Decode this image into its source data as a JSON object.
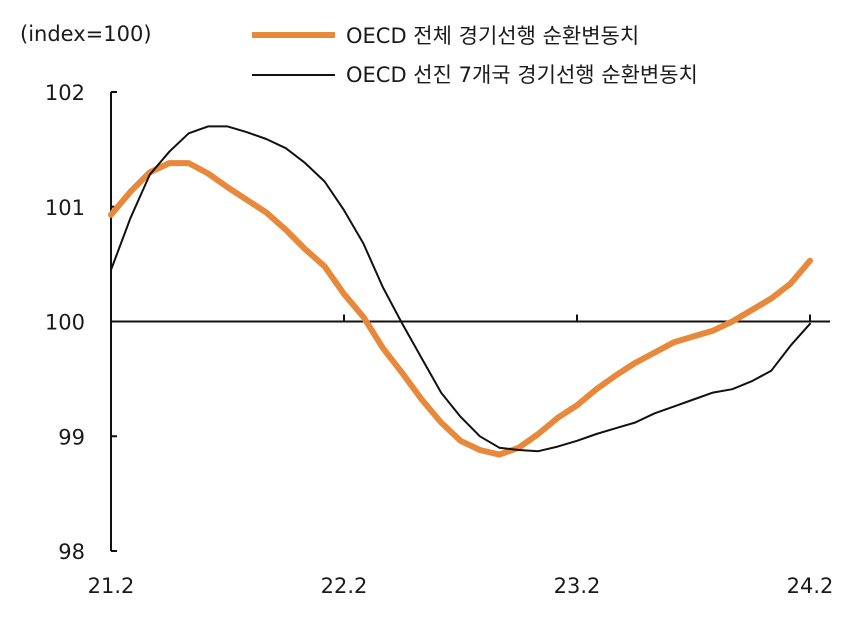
{
  "chart_data": {
    "type": "line",
    "ylabel": "(index=100)",
    "ylim": [
      98,
      102
    ],
    "y_ticks": [
      "102",
      "101",
      "100",
      "99",
      "98"
    ],
    "x_ticks": [
      "21.2",
      "22.2",
      "23.2",
      "24.2"
    ],
    "xlim": [
      "21.2",
      "24.2"
    ],
    "reference_line": 100,
    "grid": false,
    "legend_position": "top",
    "series": [
      {
        "name": "OECD 전체 경기선행 순환변동치",
        "color": "#E8883A",
        "x": [
          "21.2",
          "21.3",
          "21.4",
          "21.5",
          "21.6",
          "21.7",
          "21.8",
          "21.9",
          "21.10",
          "21.11",
          "21.12",
          "22.1",
          "22.2",
          "22.3",
          "22.4",
          "22.5",
          "22.6",
          "22.7",
          "22.8",
          "22.9",
          "22.10",
          "22.11",
          "22.12",
          "23.1",
          "23.2",
          "23.3",
          "23.4",
          "23.5",
          "23.6",
          "23.7",
          "23.8",
          "23.9",
          "23.10",
          "23.11",
          "23.12",
          "24.1",
          "24.2"
        ],
        "values": [
          100.93,
          101.13,
          101.3,
          101.38,
          101.38,
          101.29,
          101.17,
          101.06,
          100.95,
          100.8,
          100.63,
          100.48,
          100.24,
          100.04,
          99.77,
          99.55,
          99.32,
          99.12,
          98.96,
          98.88,
          98.84,
          98.9,
          99.02,
          99.16,
          99.27,
          99.41,
          99.53,
          99.64,
          99.73,
          99.82,
          99.87,
          99.92,
          100.0,
          100.1,
          100.2,
          100.33,
          100.53
        ]
      },
      {
        "name": "OECD 선진 7개국 경기선행 순환변동치",
        "color": "#111111",
        "x": [
          "21.2",
          "21.3",
          "21.4",
          "21.5",
          "21.6",
          "21.7",
          "21.8",
          "21.9",
          "21.10",
          "21.11",
          "21.12",
          "22.1",
          "22.2",
          "22.3",
          "22.4",
          "22.5",
          "22.6",
          "22.7",
          "22.8",
          "22.9",
          "22.10",
          "22.11",
          "22.12",
          "23.1",
          "23.2",
          "23.3",
          "23.4",
          "23.5",
          "23.6",
          "23.7",
          "23.8",
          "23.9",
          "23.10",
          "23.11",
          "23.12",
          "24.1",
          "24.2"
        ],
        "values": [
          100.45,
          100.9,
          101.28,
          101.48,
          101.64,
          101.7,
          101.7,
          101.65,
          101.59,
          101.51,
          101.38,
          101.22,
          100.97,
          100.68,
          100.3,
          99.98,
          99.68,
          99.38,
          99.17,
          99.0,
          98.9,
          98.88,
          98.87,
          98.91,
          98.96,
          99.02,
          99.07,
          99.12,
          99.2,
          99.26,
          99.32,
          99.38,
          99.41,
          99.48,
          99.57,
          99.79,
          99.98
        ]
      }
    ]
  }
}
